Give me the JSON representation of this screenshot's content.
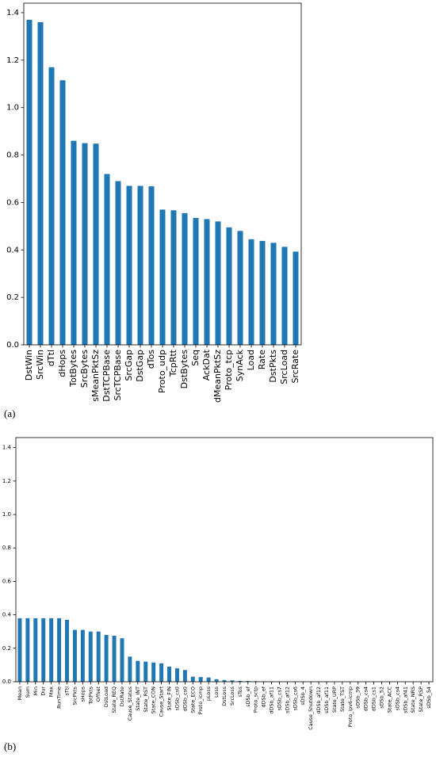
{
  "chart_data": [
    {
      "type": "bar",
      "label": "(a)",
      "color": "#1f77b4",
      "categories": [
        "DstWin",
        "SrcWin",
        "dTtl",
        "dHops",
        "TotBytes",
        "SrcBytes",
        "sMeanPktSz",
        "DstTCPBase",
        "SrcTCPBase",
        "SrcGap",
        "DstGap",
        "dTos",
        "Proto_udp",
        "TcpRtt",
        "DstBytes",
        "Seq",
        "AckDat",
        "dMeanPktSz",
        "Proto_tcp",
        "SynAck",
        "Load",
        "Rate",
        "DstPkts",
        "SrcLoad",
        "SrcRate"
      ],
      "values": [
        1.37,
        1.36,
        1.17,
        1.115,
        0.86,
        0.85,
        0.848,
        0.72,
        0.69,
        0.67,
        0.67,
        0.668,
        0.57,
        0.567,
        0.555,
        0.535,
        0.53,
        0.52,
        0.495,
        0.48,
        0.445,
        0.438,
        0.43,
        0.413,
        0.393
      ],
      "ylim": [
        0,
        1.44
      ],
      "yticks": [
        {
          "value": 0,
          "label": "0.0"
        },
        {
          "value": 0.2,
          "label": "0.2"
        },
        {
          "value": 0.4,
          "label": "0.4"
        },
        {
          "value": 0.6,
          "label": "0.6"
        },
        {
          "value": 0.8,
          "label": "0.8"
        },
        {
          "value": 1.0,
          "label": "1.0"
        },
        {
          "value": 1.2,
          "label": "1.2"
        },
        {
          "value": 1.4,
          "label": "1.4"
        }
      ]
    },
    {
      "type": "bar",
      "label": "(b)",
      "color": "#1f77b4",
      "categories": [
        "Mean",
        "Sum",
        "Min",
        "Dur",
        "Max",
        "RunTime",
        "sTtl",
        "SrcPkts",
        "sHops",
        "TotPkts",
        "Offset",
        "DstLoad",
        "State_REQ",
        "DstRate",
        "Cause_Status",
        "State_INT",
        "State_RST",
        "State_CON",
        "Cause_Start",
        "State_FIN",
        "sDSb_cs0",
        "dDSb_cs0",
        "State_ECO",
        "Proto_icmp",
        "pLoss",
        "Loss",
        "DstLoss",
        "SrcLoss",
        "sTos",
        "sDSb_ef",
        "Proto_sctp",
        "dDSb_ef",
        "dDSb_af11",
        "sDSb_cs7",
        "sDSb_af12",
        "sDSb_cs6",
        "sDSb_4",
        "Cause_Shutdown",
        "dDSb_af12",
        "sDSb_af11",
        "State_URP",
        "State_TST",
        "Proto_ipv6-icmp",
        "sDSb_39",
        "dDSb_cs4",
        "dDSb_cs1",
        "sDSb_52",
        "State_ACC",
        "sDSb_cs4",
        "sDSb_af41",
        "State_NRS",
        "State_RSP",
        "sDSb_54"
      ],
      "values": [
        0.38,
        0.38,
        0.38,
        0.38,
        0.38,
        0.38,
        0.37,
        0.31,
        0.31,
        0.3,
        0.3,
        0.28,
        0.275,
        0.26,
        0.15,
        0.125,
        0.12,
        0.115,
        0.11,
        0.09,
        0.08,
        0.07,
        0.03,
        0.028,
        0.025,
        0.015,
        0.01,
        0.008,
        0.005,
        0.004,
        0.003,
        0.002,
        0.002,
        0.001,
        0.001,
        0.001,
        0.001,
        0.001,
        0.001,
        0.001,
        0,
        0,
        0,
        0,
        0,
        0,
        0,
        0,
        0,
        0,
        0,
        0,
        0
      ],
      "ylim": [
        0,
        1.46
      ],
      "yticks": [
        {
          "value": 0,
          "label": "0.0"
        },
        {
          "value": 0.2,
          "label": "0.2"
        },
        {
          "value": 0.4,
          "label": "0.4"
        },
        {
          "value": 0.6,
          "label": "0.6"
        },
        {
          "value": 0.8,
          "label": "0.8"
        },
        {
          "value": 1.0,
          "label": "1.0"
        },
        {
          "value": 1.2,
          "label": "1.2"
        },
        {
          "value": 1.4,
          "label": "1.4"
        }
      ]
    }
  ]
}
